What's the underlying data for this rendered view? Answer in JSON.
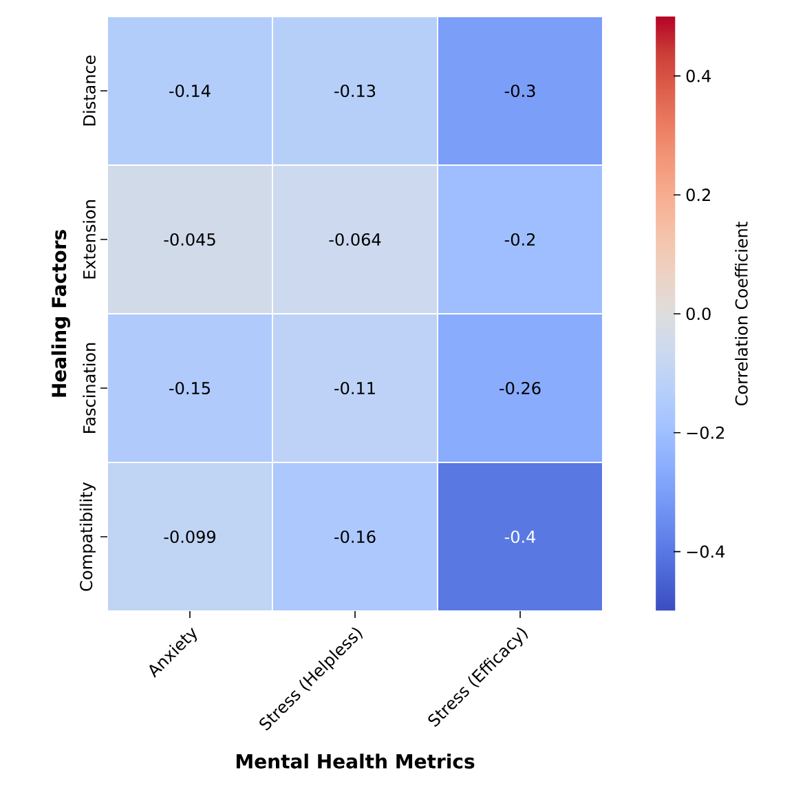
{
  "chart_data": {
    "type": "heatmap",
    "xlabel": "Mental Health Metrics",
    "ylabel": "Healing Factors",
    "clabel": "Correlation Coefficient",
    "categories": [
      "Anxiety",
      "Stress (Helpless)",
      "Stress (Efficacy)"
    ],
    "y_categories": [
      "Distance",
      "Extension",
      "Fascination",
      "Compatibility"
    ],
    "cells": [
      [
        -0.14,
        -0.13,
        -0.3
      ],
      [
        -0.045,
        -0.064,
        -0.2
      ],
      [
        -0.15,
        -0.11,
        -0.26
      ],
      [
        -0.099,
        -0.16,
        -0.4
      ]
    ],
    "data_labels": true,
    "clim": [
      -0.5,
      0.5
    ],
    "cticks": [
      {
        "value": -0.4,
        "label": "−0.4"
      },
      {
        "value": -0.2,
        "label": "−0.2"
      },
      {
        "value": 0.0,
        "label": "0.0"
      },
      {
        "value": 0.2,
        "label": "0.2"
      },
      {
        "value": 0.4,
        "label": "0.4"
      }
    ]
  }
}
